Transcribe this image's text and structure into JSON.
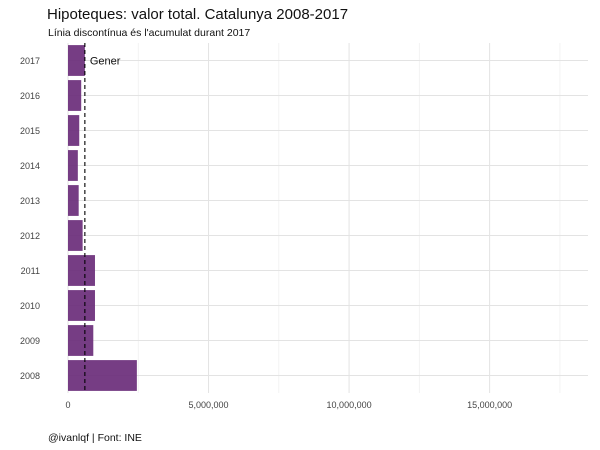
{
  "chart_data": {
    "type": "bar",
    "orientation": "horizontal",
    "title": "Hipoteques: valor total. Catalunya 2008-2017",
    "subtitle": "Línia discontínua és l'acumulat durant 2017",
    "caption": "@ivanlqf | Font: INE",
    "categories": [
      "2008",
      "2009",
      "2010",
      "2011",
      "2012",
      "2013",
      "2014",
      "2015",
      "2016",
      "2017"
    ],
    "values": [
      2450000,
      900000,
      960000,
      960000,
      520000,
      380000,
      350000,
      400000,
      470000,
      600000
    ],
    "xlim": [
      0,
      18500000
    ],
    "x_ticks": [
      0,
      5000000,
      10000000,
      15000000
    ],
    "x_tick_labels": [
      "0",
      "5,000,000",
      "10,000,000",
      "15,000,000"
    ],
    "reference_line": {
      "value": 600000,
      "style": "dashed",
      "label": "Gener"
    },
    "bar_color": "#6a2c7a",
    "grid": true
  }
}
